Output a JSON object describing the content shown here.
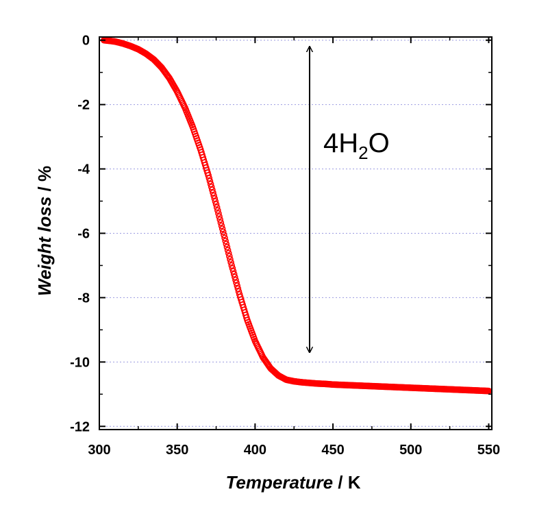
{
  "chart_data": {
    "type": "scatter",
    "xlabel": "Temperature",
    "xunit": "K",
    "ylabel": "Weight loss",
    "yunit": "%",
    "xlim": [
      300,
      552
    ],
    "ylim": [
      -12.1,
      0.1
    ],
    "x_ticks": [
      "300",
      "350",
      "400",
      "450",
      "500",
      "550"
    ],
    "y_ticks": [
      "0",
      "-2",
      "-4",
      "-6",
      "-8",
      "-10",
      "-12"
    ],
    "grid": "horizontal dotted",
    "marker": "open circle",
    "color": "#ff0000",
    "annotation": {
      "prefix": "4H",
      "subscript": "2",
      "suffix": "O",
      "arrow_x": 435,
      "arrow_y": [
        -0.2,
        -9.7
      ]
    },
    "series": [
      {
        "x": [
          303,
          305,
          310,
          315,
          320,
          325,
          330,
          335,
          340,
          345,
          350,
          355,
          360,
          365,
          370,
          375,
          380,
          385,
          390,
          395,
          400,
          405,
          410,
          415,
          420,
          425,
          430,
          435,
          440,
          445,
          450,
          460,
          470,
          480,
          490,
          500,
          510,
          520,
          530,
          540,
          550
        ],
        "y": [
          0.0,
          -0.01,
          -0.04,
          -0.1,
          -0.18,
          -0.28,
          -0.42,
          -0.6,
          -0.85,
          -1.18,
          -1.6,
          -2.1,
          -2.7,
          -3.4,
          -4.2,
          -5.1,
          -6.05,
          -7.0,
          -7.9,
          -8.7,
          -9.35,
          -9.85,
          -10.2,
          -10.42,
          -10.55,
          -10.6,
          -10.63,
          -10.65,
          -10.67,
          -10.68,
          -10.7,
          -10.72,
          -10.74,
          -10.76,
          -10.78,
          -10.8,
          -10.82,
          -10.84,
          -10.86,
          -10.88,
          -10.9
        ]
      }
    ]
  }
}
